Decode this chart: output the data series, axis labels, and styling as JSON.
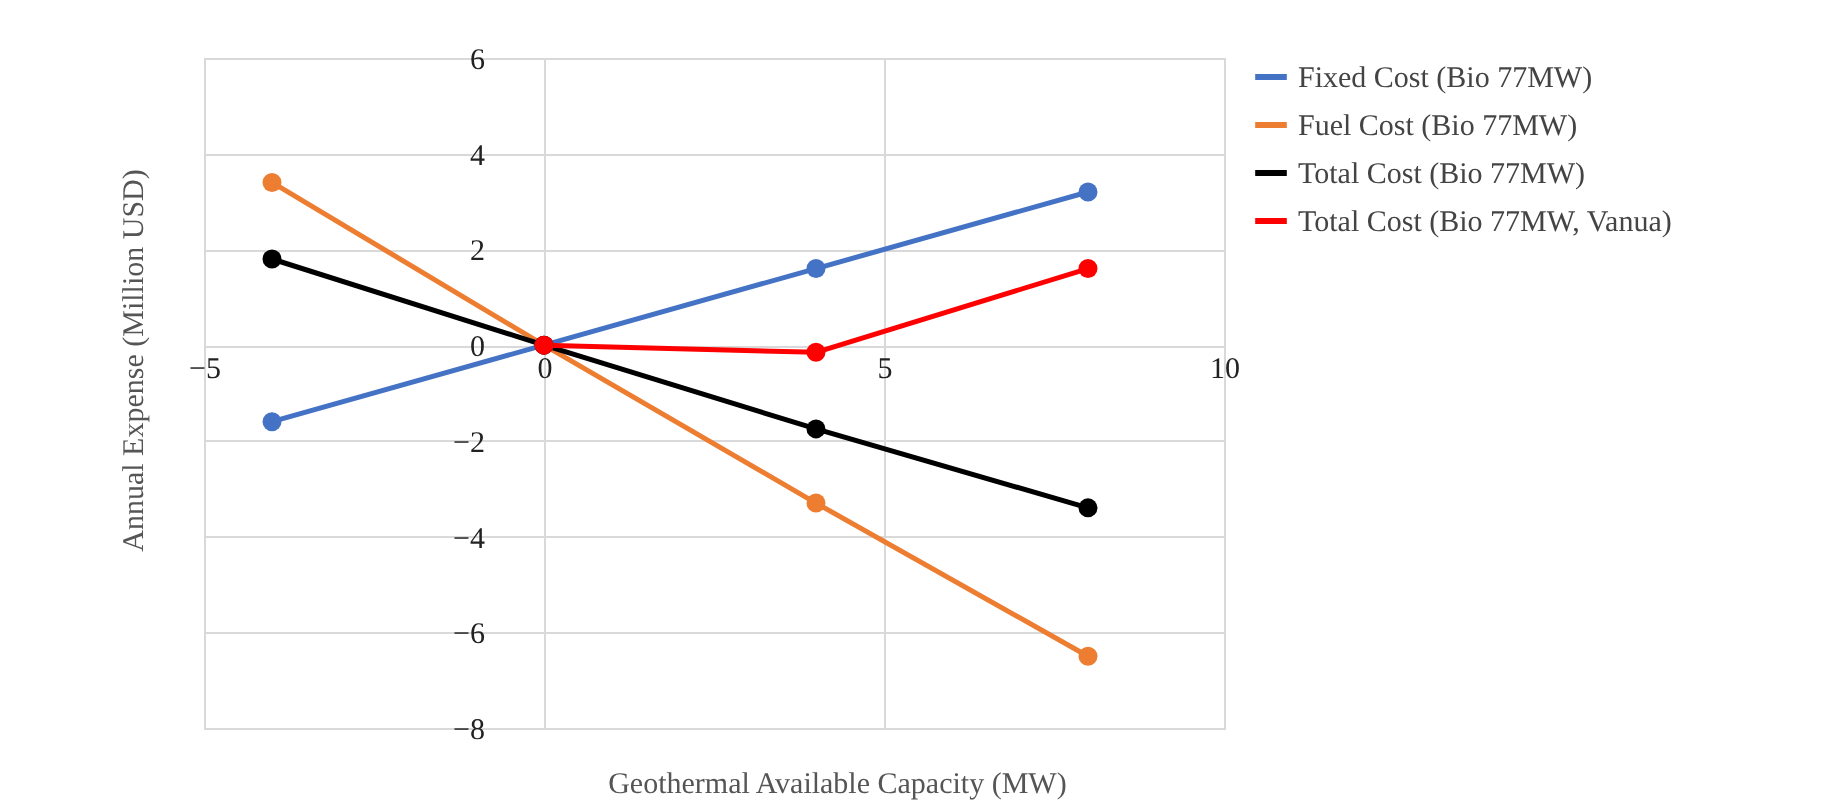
{
  "chart_data": {
    "type": "line",
    "xlabel": "Geothermal Available Capacity (MW)",
    "ylabel": "Annual Expense (Million USD)",
    "x": [
      -4,
      0,
      4,
      8
    ],
    "series": [
      {
        "name": "Fixed Cost (Bio 77MW)",
        "color": "#4472c4",
        "values": [
          -1.6,
          0,
          1.6,
          3.2
        ]
      },
      {
        "name": "Fuel Cost (Bio 77MW)",
        "color": "#ed7d31",
        "values": [
          3.4,
          0,
          -3.3,
          -6.5
        ]
      },
      {
        "name": "Total Cost (Bio 77MW)",
        "color": "#000000",
        "values": [
          1.8,
          0,
          -1.75,
          -3.4
        ]
      },
      {
        "name": "Total Cost (Bio 77MW, Vanua)",
        "color": "#ff0000",
        "x": [
          0,
          4,
          8
        ],
        "values": [
          0,
          -0.15,
          1.6
        ]
      }
    ],
    "xlim": [
      -5,
      10
    ],
    "xticks": [
      -5,
      0,
      5,
      10
    ],
    "ylim": [
      -8,
      6
    ],
    "yticks": [
      -8,
      -6,
      -4,
      -2,
      0,
      2,
      4,
      6
    ],
    "grid": true,
    "legend": "right",
    "marker": "circle",
    "line_style": "solid"
  }
}
